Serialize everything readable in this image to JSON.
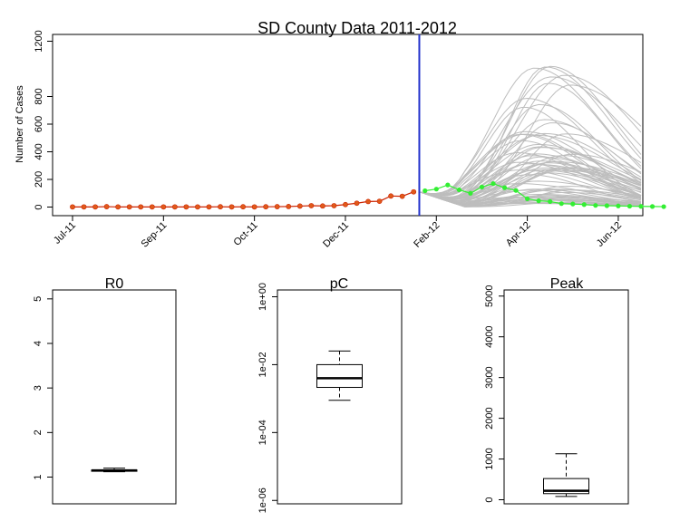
{
  "colors": {
    "ensemble": "#bdbdbd",
    "observed": "#cc2200",
    "observed_pre": "#e05a1a",
    "forecast": "#33ee33",
    "cutoff": "#2233cc",
    "axis": "#000000"
  },
  "chart_data": [
    {
      "type": "line",
      "title": "SD County Data 2011-2012",
      "xlabel": "",
      "ylabel": "Number of Cases",
      "ylim": [
        0,
        1200
      ],
      "yticks": [
        "0",
        "200",
        "400",
        "600",
        "800",
        "1200"
      ],
      "ytick_values": [
        0,
        200,
        400,
        600,
        800,
        1200
      ],
      "xtick_labels": [
        "Jul-11",
        "Sep-11",
        "Oct-11",
        "Dec-11",
        "Feb-12",
        "Apr-12",
        "Jun-12"
      ],
      "xtick_weeks": [
        0,
        8,
        16,
        24,
        32,
        40,
        48
      ],
      "n_weeks": 51,
      "cutoff_week": 30.5,
      "series": [
        {
          "name": "observed",
          "color": "red",
          "values": [
            1,
            1,
            1,
            3,
            1,
            1,
            1,
            1,
            1,
            1,
            1,
            1,
            1,
            2,
            1,
            2,
            1,
            2,
            3,
            4,
            7,
            10,
            8,
            10,
            18,
            28,
            40,
            42,
            80,
            78,
            110
          ]
        },
        {
          "name": "after-cutoff",
          "color": "green",
          "values": [
            118,
            130,
            160,
            125,
            100,
            145,
            170,
            140,
            120,
            60,
            45,
            40,
            25,
            22,
            18,
            12,
            10,
            8,
            6,
            5,
            4,
            3
          ]
        }
      ],
      "ensemble": {
        "count": 70,
        "peak_min": 25,
        "peak_max": 1090,
        "peak_week_min": 39,
        "peak_week_max": 44
      }
    },
    {
      "type": "box",
      "title": "R0",
      "ylim": [
        0.4,
        5.2
      ],
      "yticks": [
        "1",
        "2",
        "3",
        "4",
        "5"
      ],
      "ytick_values": [
        1,
        2,
        3,
        4,
        5
      ],
      "whisker_low": 1.12,
      "q1": 1.13,
      "median": 1.15,
      "q3": 1.16,
      "whisker_high": 1.2,
      "scale": "linear"
    },
    {
      "type": "box",
      "title": "pC",
      "ylim": [
        -6.1,
        0.2
      ],
      "yticks": [
        "1e-06",
        "1e-04",
        "1e-02",
        "1e+00"
      ],
      "ytick_values": [
        -6,
        -4,
        -2,
        0
      ],
      "whisker_low": -3.05,
      "q1": -2.67,
      "median": -2.4,
      "q3": -2.0,
      "whisker_high": -1.6,
      "scale": "log10"
    },
    {
      "type": "box",
      "title": "Peak",
      "ylim": [
        -100,
        5150
      ],
      "yticks": [
        "0",
        "1000",
        "2000",
        "3000",
        "4000",
        "5000"
      ],
      "ytick_values": [
        0,
        1000,
        2000,
        3000,
        4000,
        5000
      ],
      "whisker_low": 80,
      "q1": 150,
      "median": 220,
      "q3": 520,
      "whisker_high": 1130,
      "scale": "linear"
    }
  ]
}
